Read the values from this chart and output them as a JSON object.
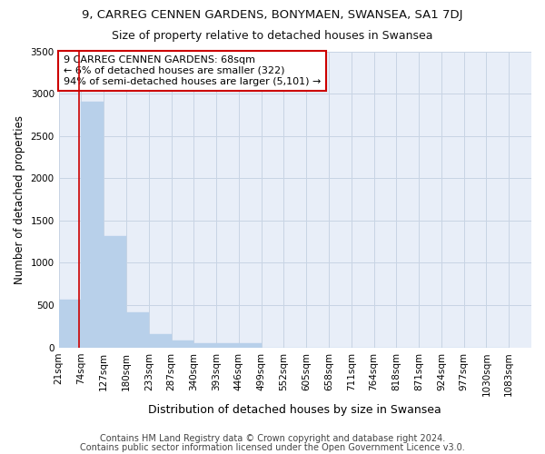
{
  "title": "9, CARREG CENNEN GARDENS, BONYMAEN, SWANSEA, SA1 7DJ",
  "subtitle": "Size of property relative to detached houses in Swansea",
  "xlabel": "Distribution of detached houses by size in Swansea",
  "ylabel": "Number of detached properties",
  "footer_line1": "Contains HM Land Registry data © Crown copyright and database right 2024.",
  "footer_line2": "Contains public sector information licensed under the Open Government Licence v3.0.",
  "annotation_line1": "9 CARREG CENNEN GARDENS: 68sqm",
  "annotation_line2": "← 6% of detached houses are smaller (322)",
  "annotation_line3": "94% of semi-detached houses are larger (5,101) →",
  "bin_labels": [
    "21sqm",
    "74sqm",
    "127sqm",
    "180sqm",
    "233sqm",
    "287sqm",
    "340sqm",
    "393sqm",
    "446sqm",
    "499sqm",
    "552sqm",
    "605sqm",
    "658sqm",
    "711sqm",
    "764sqm",
    "818sqm",
    "871sqm",
    "924sqm",
    "977sqm",
    "1030sqm",
    "1083sqm"
  ],
  "bar_values": [
    570,
    2900,
    1315,
    410,
    160,
    80,
    55,
    50,
    45,
    0,
    0,
    0,
    0,
    0,
    0,
    0,
    0,
    0,
    0,
    0
  ],
  "highlight_bar_index": 0,
  "bar_color": "#b8d0ea",
  "bar_edgecolor": "#b8d0ea",
  "highlight_color": "#cc0000",
  "grid_color": "#c8d4e4",
  "background_color": "#e8eef8",
  "annotation_box_facecolor": "#ffffff",
  "annotation_box_edgecolor": "#cc0000",
  "ylim": [
    0,
    3500
  ],
  "yticks": [
    0,
    500,
    1000,
    1500,
    2000,
    2500,
    3000,
    3500
  ],
  "title_fontsize": 9.5,
  "subtitle_fontsize": 9,
  "ylabel_fontsize": 8.5,
  "xlabel_fontsize": 9,
  "tick_fontsize": 7.5,
  "annotation_fontsize": 8,
  "footer_fontsize": 7
}
